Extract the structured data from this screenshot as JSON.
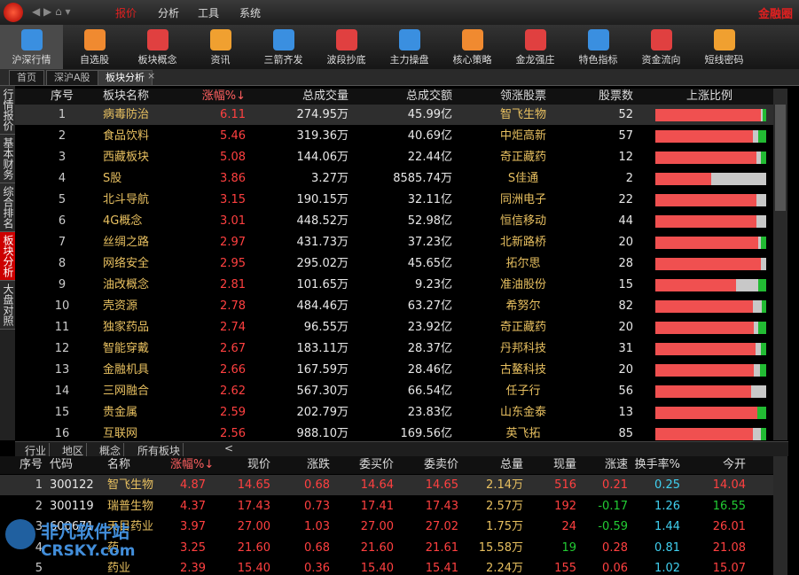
{
  "menu": {
    "items": [
      "报价",
      "分析",
      "工具",
      "系统"
    ],
    "brand": "金融圈"
  },
  "toolbar": [
    "沪深行情",
    "自选股",
    "板块概念",
    "资讯",
    "三箭齐发",
    "波段抄底",
    "主力操盘",
    "核心策略",
    "金龙强庄",
    "特色指标",
    "资金流向",
    "短线密码"
  ],
  "tabs": [
    "首页",
    "深沪A股",
    "板块分析"
  ],
  "side_tabs": [
    "行情报价",
    "基本财务",
    "综合排名",
    "板块分析",
    "大盘对照"
  ],
  "sector_table": {
    "columns": [
      "序号",
      "板块名称",
      "涨幅%↓",
      "总成交量",
      "总成交额",
      "领涨股票",
      "股票数",
      "上涨比例"
    ],
    "rows": [
      [
        "1",
        "病毒防治",
        "6.11",
        "274.95万",
        "45.99亿",
        "智飞生物",
        "52"
      ],
      [
        "2",
        "食品饮料",
        "5.46",
        "319.36万",
        "40.69亿",
        "中炬高新",
        "57"
      ],
      [
        "3",
        "西藏板块",
        "5.08",
        "144.06万",
        "22.44亿",
        "奇正藏药",
        "12"
      ],
      [
        "4",
        "S股",
        "3.86",
        "3.27万",
        "8585.74万",
        "S佳通",
        "2"
      ],
      [
        "5",
        "北斗导航",
        "3.15",
        "190.15万",
        "32.11亿",
        "同洲电子",
        "22"
      ],
      [
        "6",
        "4G概念",
        "3.01",
        "448.52万",
        "52.98亿",
        "恒信移动",
        "44"
      ],
      [
        "7",
        "丝绸之路",
        "2.97",
        "431.73万",
        "37.23亿",
        "北新路桥",
        "20"
      ],
      [
        "8",
        "网络安全",
        "2.95",
        "295.02万",
        "45.65亿",
        "拓尔思",
        "28"
      ],
      [
        "9",
        "油改概念",
        "2.81",
        "101.65万",
        "9.23亿",
        "准油股份",
        "15"
      ],
      [
        "10",
        "壳资源",
        "2.78",
        "484.46万",
        "63.27亿",
        "希努尔",
        "82"
      ],
      [
        "11",
        "独家药品",
        "2.74",
        "96.55万",
        "23.92亿",
        "奇正藏药",
        "20"
      ],
      [
        "12",
        "智能穿戴",
        "2.67",
        "183.11万",
        "28.37亿",
        "丹邦科技",
        "31"
      ],
      [
        "13",
        "金融机具",
        "2.66",
        "167.59万",
        "28.46亿",
        "古鳌科技",
        "20"
      ],
      [
        "14",
        "三网融合",
        "2.62",
        "567.30万",
        "66.54亿",
        "任子行",
        "56"
      ],
      [
        "15",
        "贵金属",
        "2.59",
        "202.79万",
        "23.83亿",
        "山东金泰",
        "13"
      ],
      [
        "16",
        "互联网",
        "2.56",
        "988.10万",
        "169.56亿",
        "英飞拓",
        "85"
      ]
    ],
    "up_ratio": [
      [
        95,
        2,
        3
      ],
      [
        88,
        5,
        7
      ],
      [
        91,
        4,
        5
      ],
      [
        50,
        50,
        0
      ],
      [
        91,
        9,
        0
      ],
      [
        91,
        9,
        0
      ],
      [
        93,
        2,
        5
      ],
      [
        95,
        5,
        0
      ],
      [
        73,
        20,
        7
      ],
      [
        88,
        8,
        4
      ],
      [
        89,
        4,
        7
      ],
      [
        90,
        5,
        5
      ],
      [
        89,
        5,
        6
      ],
      [
        86,
        14,
        0
      ],
      [
        92,
        0,
        8
      ],
      [
        88,
        7,
        5
      ]
    ],
    "ratio_colors": [
      "#f05050",
      "#c8c8c8",
      "#22bb33"
    ]
  },
  "category_tabs": [
    "行业",
    "地区",
    "概念",
    "所有板块"
  ],
  "stock_table": {
    "columns": [
      "序号",
      "代码",
      "名称",
      "涨幅%↓",
      "现价",
      "涨跌",
      "委买价",
      "委卖价",
      "总量",
      "现量",
      "涨速",
      "换手率%",
      "今开"
    ],
    "rows": [
      [
        "1",
        "300122",
        "智飞生物",
        "4.87",
        "14.65",
        "0.68",
        "14.64",
        "14.65",
        "2.14万",
        "516",
        "0.21",
        "0.25",
        "14.04"
      ],
      [
        "2",
        "300119",
        "瑞普生物",
        "4.37",
        "17.43",
        "0.73",
        "17.41",
        "17.43",
        "2.57万",
        "192",
        "-0.17",
        "1.26",
        "16.55"
      ],
      [
        "3",
        "600671",
        "天目药业",
        "3.97",
        "27.00",
        "1.03",
        "27.00",
        "27.02",
        "1.75万",
        "24",
        "-0.59",
        "1.44",
        "26.01"
      ],
      [
        "4",
        null,
        "药",
        "3.25",
        "21.60",
        "0.68",
        "21.60",
        "21.61",
        "15.58万",
        "19",
        "0.28",
        "0.81",
        "21.08"
      ],
      [
        "5",
        null,
        "药业",
        "2.39",
        "15.40",
        "0.36",
        "15.40",
        "15.41",
        "2.24万",
        "155",
        "0.06",
        "1.02",
        "15.07"
      ]
    ],
    "current_volume_colors": [
      "#ff4040",
      "#ff4040",
      "#ff4040",
      "#22cc33",
      "#ff4040"
    ]
  },
  "watermark": {
    "cn": "非凡软件站",
    "en": "CRSKY.com"
  }
}
